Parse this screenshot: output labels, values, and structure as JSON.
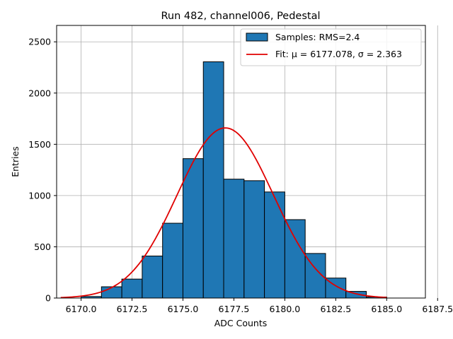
{
  "chart_data": {
    "type": "bar",
    "title": "Run 482, channel006, Pedestal",
    "xlabel": "ADC Counts",
    "ylabel": "Entries",
    "xlim": [
      6168.8,
      6186.9
    ],
    "ylim": [
      0,
      2660
    ],
    "grid": true,
    "legend_position": "upper-right",
    "x_ticks": [
      {
        "value": 6170.0,
        "label": "6170.0"
      },
      {
        "value": 6172.5,
        "label": "6172.5"
      },
      {
        "value": 6175.0,
        "label": "6175.0"
      },
      {
        "value": 6177.5,
        "label": "6177.5"
      },
      {
        "value": 6180.0,
        "label": "6180.0"
      },
      {
        "value": 6182.5,
        "label": "6182.5"
      },
      {
        "value": 6185.0,
        "label": "6185.0"
      },
      {
        "value": 6187.5,
        "label": "6187.5"
      }
    ],
    "y_ticks": [
      {
        "value": 0,
        "label": "0"
      },
      {
        "value": 500,
        "label": "500"
      },
      {
        "value": 1000,
        "label": "1000"
      },
      {
        "value": 1500,
        "label": "1500"
      },
      {
        "value": 2000,
        "label": "2000"
      },
      {
        "value": 2500,
        "label": "2500"
      }
    ],
    "histogram": {
      "name": "Samples: RMS=2.4",
      "color": "#1f77b4",
      "edge_color": "#000000",
      "bins": [
        {
          "low": 6170,
          "high": 6171,
          "count": 15
        },
        {
          "low": 6171,
          "high": 6172,
          "count": 110
        },
        {
          "low": 6172,
          "high": 6173,
          "count": 185
        },
        {
          "low": 6173,
          "high": 6174,
          "count": 410
        },
        {
          "low": 6174,
          "high": 6175,
          "count": 730
        },
        {
          "low": 6175,
          "high": 6176,
          "count": 1360
        },
        {
          "low": 6176,
          "high": 6177,
          "count": 2305
        },
        {
          "low": 6177,
          "high": 6178,
          "count": 1160
        },
        {
          "low": 6178,
          "high": 6179,
          "count": 1145
        },
        {
          "low": 6179,
          "high": 6180,
          "count": 1035
        },
        {
          "low": 6180,
          "high": 6181,
          "count": 765
        },
        {
          "low": 6181,
          "high": 6182,
          "count": 435
        },
        {
          "low": 6182,
          "high": 6183,
          "count": 195
        },
        {
          "low": 6183,
          "high": 6184,
          "count": 65
        },
        {
          "low": 6184,
          "high": 6185,
          "count": 10
        }
      ]
    },
    "fit": {
      "name": "Fit: μ = 6177.078, σ = 2.363",
      "color": "#e00000",
      "type": "gaussian",
      "mu": 6177.078,
      "sigma": 2.363,
      "amplitude": 1660,
      "x_range": [
        6169,
        6185
      ]
    },
    "legend": [
      {
        "label": "Samples: RMS=2.4",
        "kind": "patch",
        "color": "#1f77b4"
      },
      {
        "label": "Fit: μ = 6177.078, σ = 2.363",
        "kind": "line",
        "color": "#e00000"
      }
    ]
  }
}
